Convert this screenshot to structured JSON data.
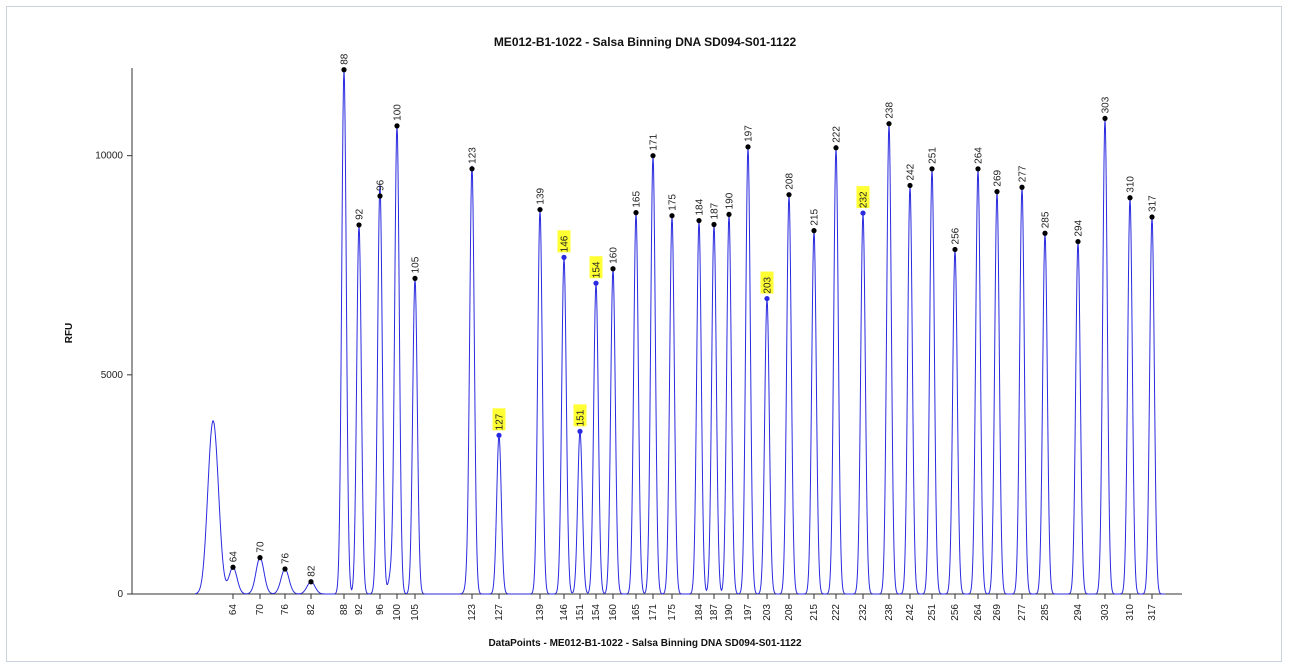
{
  "chart_data": {
    "type": "line",
    "title": "ME012-B1-1022 - Salsa Binning DNA SD094-S01-1122",
    "xlabel": "DataPoints - ME012-B1-1022 - Salsa Binning DNA SD094-S01-1122",
    "ylabel": "RFU",
    "ylim": [
      0,
      12000
    ],
    "y_ticks": [
      "0",
      "5000",
      "10000"
    ],
    "grid": false,
    "colors": {
      "trace": "#2a2ae0",
      "marker": "#000000",
      "highlight_marker": "#2a2ae0",
      "highlight_bg": "#ffff33"
    },
    "x_ticks": [
      "64",
      "70",
      "76",
      "82",
      "88",
      "92",
      "96",
      "100",
      "105",
      "123",
      "127",
      "139",
      "146",
      "151",
      "154",
      "160",
      "165",
      "171",
      "175",
      "184",
      "187",
      "190",
      "197",
      "203",
      "208",
      "215",
      "222",
      "232",
      "238",
      "242",
      "251",
      "256",
      "264",
      "269",
      "277",
      "285",
      "294",
      "303",
      "310",
      "317"
    ],
    "unlabeled_peaks": [
      {
        "pos": 211,
        "rfu": 2550
      },
      {
        "pos": 216,
        "rfu": 2050
      },
      {
        "pos": 468,
        "rfu": 250
      },
      {
        "pos": 378,
        "rfu": 350
      },
      {
        "pos": 391,
        "rfu": 450
      }
    ],
    "peaks": [
      {
        "label": "64",
        "pos": 233,
        "rfu": 610,
        "highlight": false
      },
      {
        "label": "70",
        "pos": 260,
        "rfu": 830,
        "highlight": false
      },
      {
        "label": "76",
        "pos": 285,
        "rfu": 570,
        "highlight": false
      },
      {
        "label": "82",
        "pos": 311,
        "rfu": 280,
        "highlight": false
      },
      {
        "label": "88",
        "pos": 344,
        "rfu": 11960,
        "highlight": false
      },
      {
        "label": "92",
        "pos": 359,
        "rfu": 8420,
        "highlight": false
      },
      {
        "label": "96",
        "pos": 380,
        "rfu": 9080,
        "highlight": false
      },
      {
        "label": "100",
        "pos": 397,
        "rfu": 10680,
        "highlight": false
      },
      {
        "label": "105",
        "pos": 415,
        "rfu": 7200,
        "highlight": false
      },
      {
        "label": "123",
        "pos": 472,
        "rfu": 9700,
        "highlight": false
      },
      {
        "label": "127",
        "pos": 499,
        "rfu": 3620,
        "highlight": true
      },
      {
        "label": "139",
        "pos": 540,
        "rfu": 8770,
        "highlight": false
      },
      {
        "label": "146",
        "pos": 564,
        "rfu": 7680,
        "highlight": true
      },
      {
        "label": "151",
        "pos": 580,
        "rfu": 3710,
        "highlight": true
      },
      {
        "label": "154",
        "pos": 596,
        "rfu": 7090,
        "highlight": true
      },
      {
        "label": "160",
        "pos": 613,
        "rfu": 7420,
        "highlight": false
      },
      {
        "label": "165",
        "pos": 636,
        "rfu": 8700,
        "highlight": false
      },
      {
        "label": "171",
        "pos": 653,
        "rfu": 10000,
        "highlight": false
      },
      {
        "label": "175",
        "pos": 672,
        "rfu": 8630,
        "highlight": false
      },
      {
        "label": "184",
        "pos": 699,
        "rfu": 8520,
        "highlight": false
      },
      {
        "label": "187",
        "pos": 714,
        "rfu": 8430,
        "highlight": false
      },
      {
        "label": "190",
        "pos": 729,
        "rfu": 8660,
        "highlight": false
      },
      {
        "label": "197",
        "pos": 748,
        "rfu": 10200,
        "highlight": false
      },
      {
        "label": "203",
        "pos": 767,
        "rfu": 6740,
        "highlight": true
      },
      {
        "label": "208",
        "pos": 789,
        "rfu": 9110,
        "highlight": false
      },
      {
        "label": "215",
        "pos": 814,
        "rfu": 8290,
        "highlight": false
      },
      {
        "label": "222",
        "pos": 836,
        "rfu": 10180,
        "highlight": false
      },
      {
        "label": "232",
        "pos": 863,
        "rfu": 8690,
        "highlight": true
      },
      {
        "label": "238",
        "pos": 889,
        "rfu": 10730,
        "highlight": false
      },
      {
        "label": "242",
        "pos": 910,
        "rfu": 9320,
        "highlight": false
      },
      {
        "label": "251",
        "pos": 932,
        "rfu": 9700,
        "highlight": false
      },
      {
        "label": "256",
        "pos": 955,
        "rfu": 7860,
        "highlight": false
      },
      {
        "label": "264",
        "pos": 978,
        "rfu": 9700,
        "highlight": false
      },
      {
        "label": "269",
        "pos": 997,
        "rfu": 9180,
        "highlight": false
      },
      {
        "label": "277",
        "pos": 1022,
        "rfu": 9280,
        "highlight": false
      },
      {
        "label": "285",
        "pos": 1045,
        "rfu": 8230,
        "highlight": false
      },
      {
        "label": "294",
        "pos": 1078,
        "rfu": 8040,
        "highlight": false
      },
      {
        "label": "303",
        "pos": 1105,
        "rfu": 10850,
        "highlight": false
      },
      {
        "label": "310",
        "pos": 1130,
        "rfu": 9040,
        "highlight": false
      },
      {
        "label": "317",
        "pos": 1152,
        "rfu": 8600,
        "highlight": false
      }
    ]
  }
}
